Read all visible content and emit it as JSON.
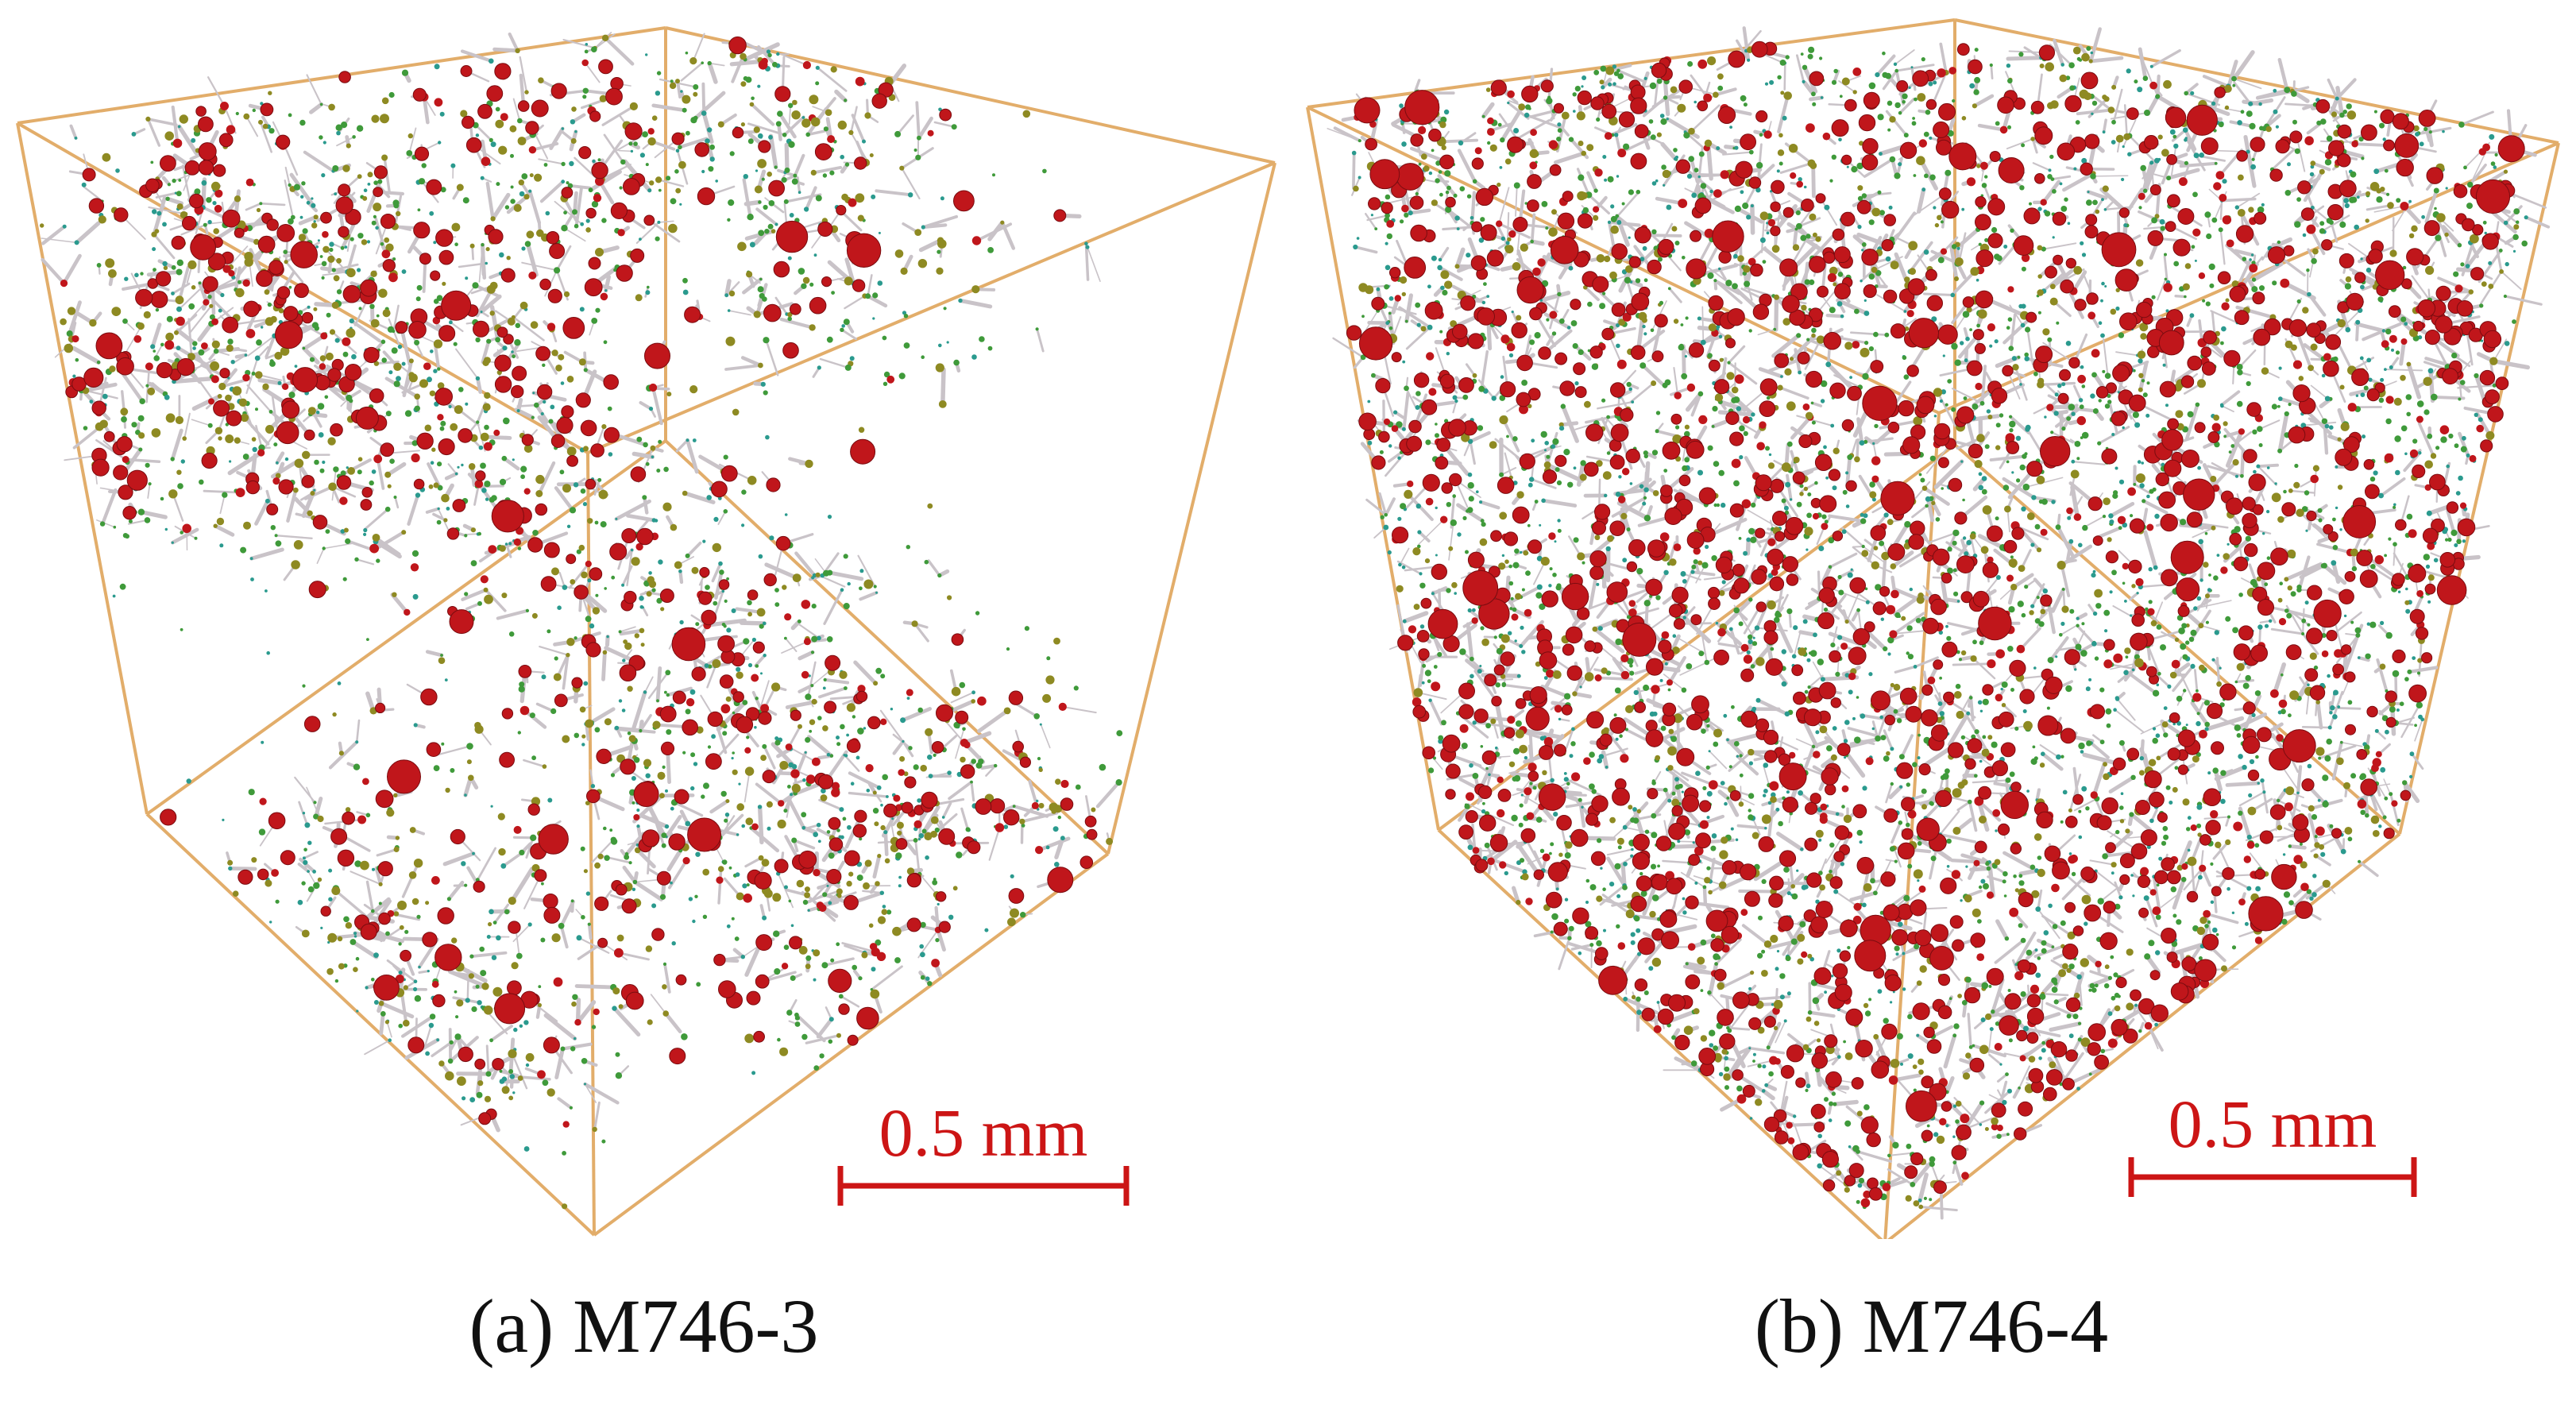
{
  "figure": {
    "panels": [
      {
        "id": "a",
        "label": "(a)",
        "sample": "M746-3",
        "scale_bar_label": "0.5 mm",
        "density": "sparse"
      },
      {
        "id": "b",
        "label": "(b)",
        "sample": "M746-4",
        "scale_bar_label": "0.5 mm",
        "density": "dense"
      }
    ],
    "colors": {
      "cube_edge": "#e2ad6a",
      "pore_large": "#c0161b",
      "pore_medium": "#8e8a22",
      "pore_small_green": "#3f9a3a",
      "pore_small_teal": "#2a9a8e",
      "throat": "#c9c3c8",
      "scale_bar": "#cc1515"
    }
  }
}
